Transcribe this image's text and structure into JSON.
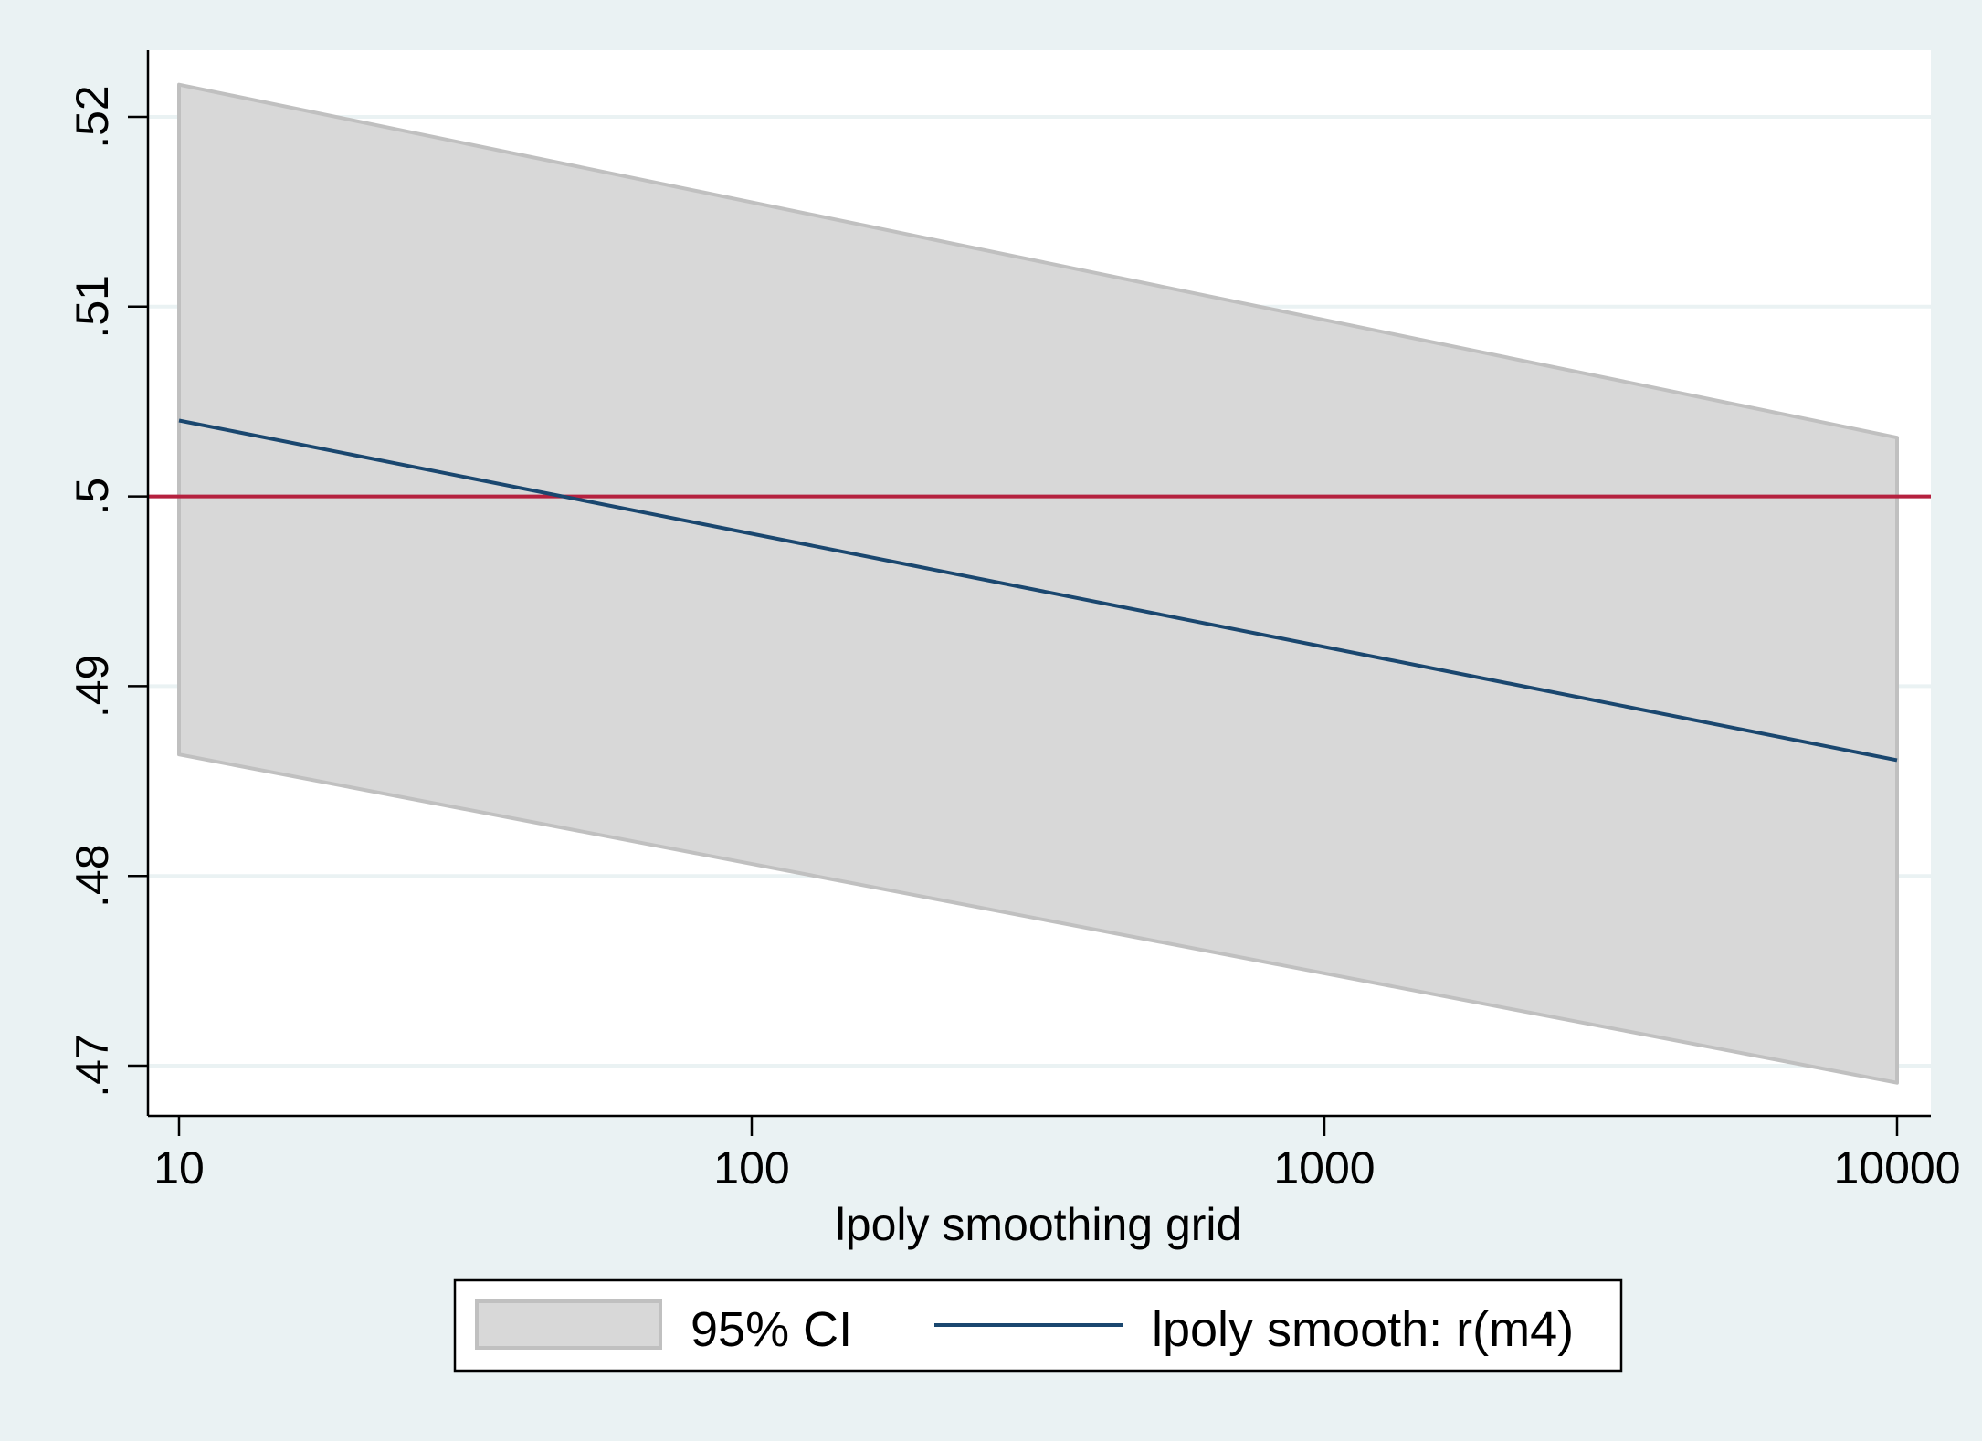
{
  "chart_data": {
    "type": "line",
    "title": "",
    "xlabel": "lpoly smoothing grid",
    "ylabel": "",
    "x_scale": "log",
    "xlim": [
      10,
      10000
    ],
    "ylim": [
      0.47,
      0.52
    ],
    "x_ticks": [
      {
        "value": 10,
        "label": "10"
      },
      {
        "value": 100,
        "label": "100"
      },
      {
        "value": 1000,
        "label": "1000"
      },
      {
        "value": 10000,
        "label": "10000"
      }
    ],
    "y_ticks": [
      {
        "value": 0.47,
        "label": ".47"
      },
      {
        "value": 0.48,
        "label": ".48"
      },
      {
        "value": 0.49,
        "label": ".49"
      },
      {
        "value": 0.5,
        "label": ".5"
      },
      {
        "value": 0.51,
        "label": ".51"
      },
      {
        "value": 0.52,
        "label": ".52"
      }
    ],
    "grid": true,
    "series": [
      {
        "name": "95% CI",
        "kind": "band",
        "x": [
          10,
          10000
        ],
        "upper": [
          0.5217,
          0.5031
        ],
        "lower": [
          0.4864,
          0.4691
        ],
        "color": "#d8d8d8",
        "edge_color": "#c0c0c0"
      },
      {
        "name": "lpoly smooth: r(m4)",
        "kind": "line",
        "x": [
          10,
          10000
        ],
        "y": [
          0.504,
          0.4861
        ],
        "color": "#1a476f"
      }
    ],
    "reference_lines": [
      {
        "axis": "y",
        "value": 0.5,
        "color": "#b5213f"
      }
    ],
    "legend": {
      "position": "bottom-center",
      "entries": [
        "95% CI",
        "lpoly smooth: r(m4)"
      ]
    }
  },
  "colors": {
    "outer_background": "#eaf2f3",
    "plot_background": "#ffffff",
    "grid": "#eaf2f3",
    "axis": "#000000"
  }
}
